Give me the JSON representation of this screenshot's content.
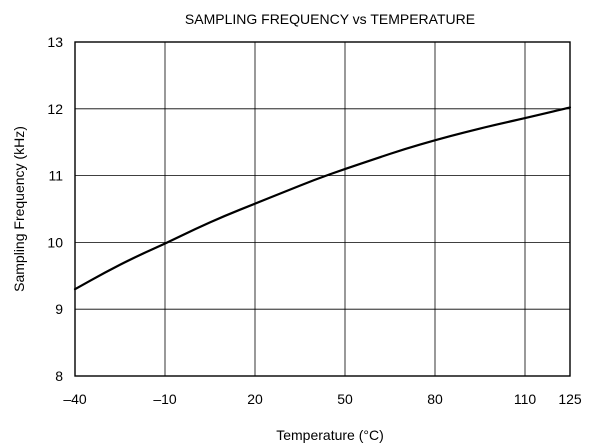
{
  "chart_data": {
    "type": "line",
    "title": "SAMPLING FREQUENCY vs TEMPERATURE",
    "xlabel": "Temperature (°C)",
    "ylabel": "Sampling Frequency (kHz)",
    "x_ticks": [
      -40,
      -10,
      20,
      50,
      80,
      110,
      125
    ],
    "x_tick_labels": [
      "–40",
      "–10",
      "20",
      "50",
      "80",
      "110",
      "125"
    ],
    "y_ticks": [
      8,
      9,
      10,
      11,
      12,
      13
    ],
    "y_tick_labels": [
      "8",
      "9",
      "10",
      "11",
      "12",
      "13"
    ],
    "xlim": [
      -40,
      125
    ],
    "ylim": [
      8,
      13
    ],
    "grid": true,
    "grid_x": [
      -40,
      -10,
      20,
      50,
      80,
      110,
      125
    ],
    "grid_y": [
      8,
      9,
      10,
      11,
      12,
      13
    ],
    "series": [
      {
        "color": "#000000",
        "x": [
          -40,
          -30,
          -20,
          -10,
          0,
          10,
          20,
          30,
          40,
          50,
          60,
          70,
          80,
          90,
          100,
          110,
          125
        ],
        "y": [
          9.3,
          9.55,
          9.78,
          9.98,
          10.2,
          10.4,
          10.58,
          10.76,
          10.94,
          11.1,
          11.25,
          11.4,
          11.53,
          11.65,
          11.76,
          11.86,
          12.02
        ]
      }
    ]
  }
}
